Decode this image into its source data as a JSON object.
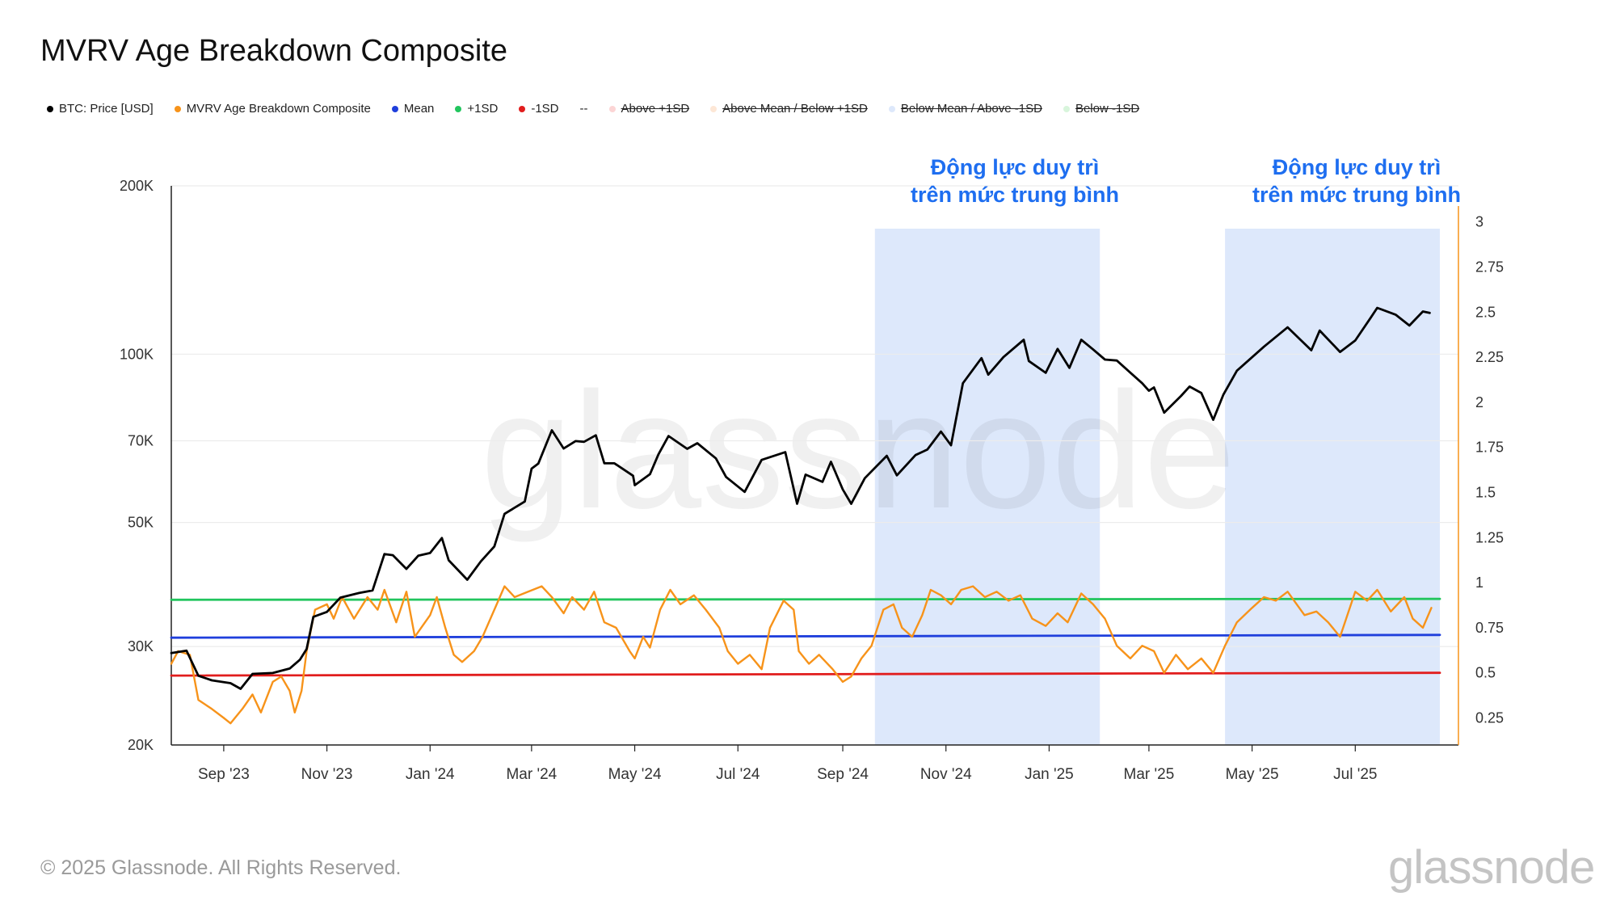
{
  "title": "MVRV Age Breakdown Composite",
  "legend": [
    {
      "label": "BTC: Price [USD]",
      "color": "#000000",
      "active": true
    },
    {
      "label": "MVRV Age Breakdown Composite",
      "color": "#f7931a",
      "active": true
    },
    {
      "label": "Mean",
      "color": "#1f3fdc",
      "active": true
    },
    {
      "label": "+1SD",
      "color": "#22c55e",
      "active": true
    },
    {
      "label": "-1SD",
      "color": "#e11d1d",
      "active": true
    },
    {
      "label": "--",
      "color": "",
      "active": true
    },
    {
      "label": "Above +1SD",
      "color": "#fcd5d5",
      "active": false
    },
    {
      "label": "Above Mean / Below +1SD",
      "color": "#fde7d6",
      "active": false
    },
    {
      "label": "Below Mean / Above -1SD",
      "color": "#dde8fb",
      "active": false
    },
    {
      "label": "Below -1SD",
      "color": "#d8f5dc",
      "active": false
    }
  ],
  "annotations": [
    {
      "text_line1": "Động lực duy trì",
      "text_line2": "trên mức trung bình"
    },
    {
      "text_line1": "Động lực duy trì",
      "text_line2": "trên mức trung bình"
    }
  ],
  "footer": "© 2025 Glassnode. All Rights Reserved.",
  "watermark": "glassnode",
  "logo": "glassnode",
  "chart_data": {
    "type": "line",
    "x_range": [
      "2023-08-01",
      "2025-08-31"
    ],
    "x_ticks": [
      "Sep '23",
      "Nov '23",
      "Jan '24",
      "Mar '24",
      "May '24",
      "Jul '24",
      "Sep '24",
      "Nov '24",
      "Jan '25",
      "Mar '25",
      "May '25",
      "Jul '25"
    ],
    "x_tick_dates": [
      "2023-09-01",
      "2023-11-01",
      "2024-01-01",
      "2024-03-01",
      "2024-05-01",
      "2024-07-01",
      "2024-09-01",
      "2024-11-01",
      "2025-01-01",
      "2025-03-01",
      "2025-05-01",
      "2025-07-01"
    ],
    "y_left": {
      "scale": "log",
      "range": [
        20000,
        200000
      ],
      "tick_values": [
        20000,
        30000,
        50000,
        70000,
        100000,
        200000
      ],
      "tick_labels": [
        "20K",
        "30K",
        "50K",
        "70K",
        "100K",
        "200K"
      ]
    },
    "y_right": {
      "scale": "linear",
      "range": [
        0.1,
        3.2
      ],
      "tick_values": [
        0.25,
        0.5,
        0.75,
        1,
        1.25,
        1.5,
        1.75,
        2,
        2.25,
        2.5,
        2.75,
        3
      ],
      "tick_labels": [
        "0.25",
        "0.5",
        "0.75",
        "1",
        "1.25",
        "1.5",
        "1.75",
        "2",
        "2.25",
        "2.5",
        "2.75",
        "3"
      ]
    },
    "shaded_ranges": [
      {
        "start": "2024-09-20",
        "end": "2025-01-31",
        "color": "#dde8fb"
      },
      {
        "start": "2025-04-15",
        "end": "2025-08-20",
        "color": "#dde8fb"
      }
    ],
    "series": [
      {
        "name": "BTC: Price [USD]",
        "axis": "left",
        "color": "#000000",
        "points": [
          [
            "2023-08-01",
            29200
          ],
          [
            "2023-08-10",
            29500
          ],
          [
            "2023-08-17",
            26600
          ],
          [
            "2023-08-25",
            26100
          ],
          [
            "2023-09-05",
            25800
          ],
          [
            "2023-09-11",
            25200
          ],
          [
            "2023-09-18",
            26800
          ],
          [
            "2023-09-30",
            26900
          ],
          [
            "2023-10-10",
            27400
          ],
          [
            "2023-10-16",
            28400
          ],
          [
            "2023-10-20",
            29700
          ],
          [
            "2023-10-24",
            33900
          ],
          [
            "2023-11-01",
            34600
          ],
          [
            "2023-11-09",
            36700
          ],
          [
            "2023-11-20",
            37400
          ],
          [
            "2023-11-28",
            37800
          ],
          [
            "2023-12-05",
            43900
          ],
          [
            "2023-12-10",
            43700
          ],
          [
            "2023-12-18",
            41300
          ],
          [
            "2023-12-25",
            43600
          ],
          [
            "2024-01-01",
            44100
          ],
          [
            "2024-01-08",
            46900
          ],
          [
            "2024-01-12",
            42800
          ],
          [
            "2024-01-23",
            39500
          ],
          [
            "2024-01-31",
            42600
          ],
          [
            "2024-02-08",
            45300
          ],
          [
            "2024-02-14",
            51800
          ],
          [
            "2024-02-26",
            54500
          ],
          [
            "2024-03-01",
            62400
          ],
          [
            "2024-03-05",
            63700
          ],
          [
            "2024-03-13",
            73100
          ],
          [
            "2024-03-20",
            67800
          ],
          [
            "2024-03-27",
            69900
          ],
          [
            "2024-04-01",
            69700
          ],
          [
            "2024-04-08",
            71600
          ],
          [
            "2024-04-13",
            63800
          ],
          [
            "2024-04-19",
            63800
          ],
          [
            "2024-04-30",
            60600
          ],
          [
            "2024-05-01",
            58300
          ],
          [
            "2024-05-10",
            61000
          ],
          [
            "2024-05-15",
            66200
          ],
          [
            "2024-05-21",
            71400
          ],
          [
            "2024-06-01",
            67700
          ],
          [
            "2024-06-07",
            69300
          ],
          [
            "2024-06-18",
            65100
          ],
          [
            "2024-06-24",
            60300
          ],
          [
            "2024-07-05",
            56700
          ],
          [
            "2024-07-15",
            64700
          ],
          [
            "2024-07-29",
            66800
          ],
          [
            "2024-08-05",
            54000
          ],
          [
            "2024-08-10",
            60900
          ],
          [
            "2024-08-20",
            59100
          ],
          [
            "2024-08-25",
            64200
          ],
          [
            "2024-09-01",
            57300
          ],
          [
            "2024-09-06",
            54000
          ],
          [
            "2024-09-14",
            60000
          ],
          [
            "2024-09-27",
            65800
          ],
          [
            "2024-10-03",
            60700
          ],
          [
            "2024-10-14",
            66000
          ],
          [
            "2024-10-21",
            67500
          ],
          [
            "2024-10-29",
            72700
          ],
          [
            "2024-11-04",
            68700
          ],
          [
            "2024-11-11",
            88700
          ],
          [
            "2024-11-22",
            98400
          ],
          [
            "2024-11-26",
            91900
          ],
          [
            "2024-12-05",
            98800
          ],
          [
            "2024-12-17",
            106100
          ],
          [
            "2024-12-20",
            97200
          ],
          [
            "2024-12-30",
            92600
          ],
          [
            "2025-01-06",
            102200
          ],
          [
            "2025-01-13",
            94500
          ],
          [
            "2025-01-20",
            106100
          ],
          [
            "2025-01-27",
            102000
          ],
          [
            "2025-02-03",
            97800
          ],
          [
            "2025-02-10",
            97400
          ],
          [
            "2025-02-25",
            88700
          ],
          [
            "2025-03-01",
            86000
          ],
          [
            "2025-03-04",
            87200
          ],
          [
            "2025-03-10",
            78600
          ],
          [
            "2025-03-20",
            84200
          ],
          [
            "2025-03-25",
            87500
          ],
          [
            "2025-04-01",
            85200
          ],
          [
            "2025-04-08",
            76300
          ],
          [
            "2025-04-14",
            84600
          ],
          [
            "2025-04-22",
            93400
          ],
          [
            "2025-05-08",
            103100
          ],
          [
            "2025-05-22",
            111700
          ],
          [
            "2025-06-05",
            101600
          ],
          [
            "2025-06-10",
            110200
          ],
          [
            "2025-06-22",
            100900
          ],
          [
            "2025-07-01",
            105800
          ],
          [
            "2025-07-10",
            116000
          ],
          [
            "2025-07-14",
            121000
          ],
          [
            "2025-07-25",
            117600
          ],
          [
            "2025-08-02",
            112500
          ],
          [
            "2025-08-10",
            119200
          ],
          [
            "2025-08-14",
            118500
          ]
        ]
      },
      {
        "name": "MVRV Age Breakdown Composite",
        "axis": "right",
        "color": "#f7931a",
        "points": [
          [
            "2023-08-01",
            0.55
          ],
          [
            "2023-08-05",
            0.62
          ],
          [
            "2023-08-12",
            0.6
          ],
          [
            "2023-08-17",
            0.35
          ],
          [
            "2023-08-25",
            0.3
          ],
          [
            "2023-09-01",
            0.25
          ],
          [
            "2023-09-05",
            0.22
          ],
          [
            "2023-09-12",
            0.3
          ],
          [
            "2023-09-18",
            0.38
          ],
          [
            "2023-09-23",
            0.28
          ],
          [
            "2023-09-30",
            0.45
          ],
          [
            "2023-10-05",
            0.48
          ],
          [
            "2023-10-10",
            0.4
          ],
          [
            "2023-10-13",
            0.28
          ],
          [
            "2023-10-17",
            0.4
          ],
          [
            "2023-10-20",
            0.62
          ],
          [
            "2023-10-25",
            0.85
          ],
          [
            "2023-11-01",
            0.88
          ],
          [
            "2023-11-05",
            0.8
          ],
          [
            "2023-11-10",
            0.92
          ],
          [
            "2023-11-17",
            0.8
          ],
          [
            "2023-11-25",
            0.92
          ],
          [
            "2023-12-01",
            0.85
          ],
          [
            "2023-12-05",
            0.96
          ],
          [
            "2023-12-12",
            0.78
          ],
          [
            "2023-12-18",
            0.95
          ],
          [
            "2023-12-23",
            0.7
          ],
          [
            "2024-01-01",
            0.82
          ],
          [
            "2024-01-05",
            0.92
          ],
          [
            "2024-01-10",
            0.75
          ],
          [
            "2024-01-15",
            0.6
          ],
          [
            "2024-01-20",
            0.56
          ],
          [
            "2024-01-27",
            0.62
          ],
          [
            "2024-02-01",
            0.7
          ],
          [
            "2024-02-08",
            0.85
          ],
          [
            "2024-02-14",
            0.98
          ],
          [
            "2024-02-20",
            0.92
          ],
          [
            "2024-02-28",
            0.95
          ],
          [
            "2024-03-07",
            0.98
          ],
          [
            "2024-03-13",
            0.92
          ],
          [
            "2024-03-20",
            0.83
          ],
          [
            "2024-03-25",
            0.92
          ],
          [
            "2024-04-01",
            0.85
          ],
          [
            "2024-04-07",
            0.95
          ],
          [
            "2024-04-13",
            0.78
          ],
          [
            "2024-04-20",
            0.75
          ],
          [
            "2024-04-28",
            0.62
          ],
          [
            "2024-05-01",
            0.58
          ],
          [
            "2024-05-06",
            0.7
          ],
          [
            "2024-05-10",
            0.64
          ],
          [
            "2024-05-16",
            0.85
          ],
          [
            "2024-05-22",
            0.96
          ],
          [
            "2024-05-28",
            0.88
          ],
          [
            "2024-06-05",
            0.93
          ],
          [
            "2024-06-12",
            0.85
          ],
          [
            "2024-06-20",
            0.75
          ],
          [
            "2024-06-25",
            0.62
          ],
          [
            "2024-07-01",
            0.55
          ],
          [
            "2024-07-08",
            0.6
          ],
          [
            "2024-07-15",
            0.52
          ],
          [
            "2024-07-20",
            0.75
          ],
          [
            "2024-07-28",
            0.9
          ],
          [
            "2024-08-03",
            0.85
          ],
          [
            "2024-08-06",
            0.62
          ],
          [
            "2024-08-12",
            0.55
          ],
          [
            "2024-08-18",
            0.6
          ],
          [
            "2024-08-26",
            0.52
          ],
          [
            "2024-09-01",
            0.45
          ],
          [
            "2024-09-06",
            0.48
          ],
          [
            "2024-09-12",
            0.58
          ],
          [
            "2024-09-18",
            0.65
          ],
          [
            "2024-09-25",
            0.85
          ],
          [
            "2024-10-01",
            0.88
          ],
          [
            "2024-10-06",
            0.75
          ],
          [
            "2024-10-12",
            0.7
          ],
          [
            "2024-10-18",
            0.82
          ],
          [
            "2024-10-23",
            0.96
          ],
          [
            "2024-10-29",
            0.93
          ],
          [
            "2024-11-04",
            0.88
          ],
          [
            "2024-11-10",
            0.96
          ],
          [
            "2024-11-17",
            0.98
          ],
          [
            "2024-11-24",
            0.92
          ],
          [
            "2024-12-01",
            0.95
          ],
          [
            "2024-12-08",
            0.9
          ],
          [
            "2024-12-15",
            0.93
          ],
          [
            "2024-12-22",
            0.8
          ],
          [
            "2024-12-30",
            0.76
          ],
          [
            "2025-01-06",
            0.83
          ],
          [
            "2025-01-12",
            0.78
          ],
          [
            "2025-01-20",
            0.94
          ],
          [
            "2025-01-27",
            0.88
          ],
          [
            "2025-02-03",
            0.8
          ],
          [
            "2025-02-10",
            0.65
          ],
          [
            "2025-02-18",
            0.58
          ],
          [
            "2025-02-25",
            0.65
          ],
          [
            "2025-03-04",
            0.62
          ],
          [
            "2025-03-10",
            0.5
          ],
          [
            "2025-03-17",
            0.6
          ],
          [
            "2025-03-24",
            0.52
          ],
          [
            "2025-04-01",
            0.58
          ],
          [
            "2025-04-08",
            0.5
          ],
          [
            "2025-04-15",
            0.65
          ],
          [
            "2025-04-22",
            0.78
          ],
          [
            "2025-05-01",
            0.86
          ],
          [
            "2025-05-08",
            0.92
          ],
          [
            "2025-05-15",
            0.9
          ],
          [
            "2025-05-22",
            0.95
          ],
          [
            "2025-06-01",
            0.82
          ],
          [
            "2025-06-08",
            0.84
          ],
          [
            "2025-06-15",
            0.78
          ],
          [
            "2025-06-22",
            0.7
          ],
          [
            "2025-07-01",
            0.95
          ],
          [
            "2025-07-08",
            0.9
          ],
          [
            "2025-07-14",
            0.96
          ],
          [
            "2025-07-22",
            0.84
          ],
          [
            "2025-07-30",
            0.92
          ],
          [
            "2025-08-04",
            0.8
          ],
          [
            "2025-08-10",
            0.75
          ],
          [
            "2025-08-15",
            0.86
          ]
        ]
      },
      {
        "name": "Mean",
        "axis": "right",
        "color": "#1f3fdc",
        "points": [
          [
            "2023-08-01",
            0.695
          ],
          [
            "2025-08-20",
            0.71
          ]
        ]
      },
      {
        "name": "+1SD",
        "axis": "right",
        "color": "#22c55e",
        "points": [
          [
            "2023-08-01",
            0.905
          ],
          [
            "2025-08-20",
            0.91
          ]
        ]
      },
      {
        "name": "-1SD",
        "axis": "right",
        "color": "#e11d1d",
        "points": [
          [
            "2023-08-01",
            0.485
          ],
          [
            "2025-08-20",
            0.5
          ]
        ]
      }
    ]
  }
}
